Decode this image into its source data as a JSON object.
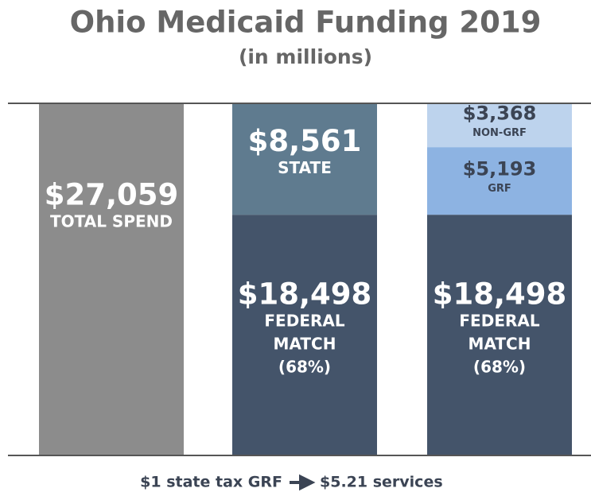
{
  "chart_data": {
    "type": "stacked_bar",
    "title": "Ohio Medicaid Funding 2019",
    "subtitle": "(in millions)",
    "ylim": [
      0,
      27059
    ],
    "bars": [
      {
        "segments": [
          {
            "value": 27059,
            "value_label": "$27,059",
            "label": [
              "TOTAL SPEND"
            ],
            "color": "#8c8c8c",
            "size": "large"
          }
        ]
      },
      {
        "segments": [
          {
            "value": 18498,
            "value_label": "$18,498",
            "label": [
              "FEDERAL",
              "MATCH",
              "(68%)"
            ],
            "color": "#44546a",
            "size": "large"
          },
          {
            "value": 8561,
            "value_label": "$8,561",
            "label": [
              "STATE"
            ],
            "color": "#5f7b8f",
            "size": "large"
          }
        ]
      },
      {
        "segments": [
          {
            "value": 18498,
            "value_label": "$18,498",
            "label": [
              "FEDERAL",
              "MATCH",
              "(68%)"
            ],
            "color": "#44546a",
            "size": "large"
          },
          {
            "value": 5193,
            "value_label": "$5,193",
            "label": [
              "GRF"
            ],
            "color": "#8db3e2",
            "size": "small"
          },
          {
            "value": 3368,
            "value_label": "$3,368",
            "label": [
              "NON-GRF"
            ],
            "color": "#bdd3ed",
            "size": "small"
          }
        ]
      }
    ],
    "footer": {
      "left": "$1 state tax GRF",
      "right": "$5.21 services"
    }
  }
}
